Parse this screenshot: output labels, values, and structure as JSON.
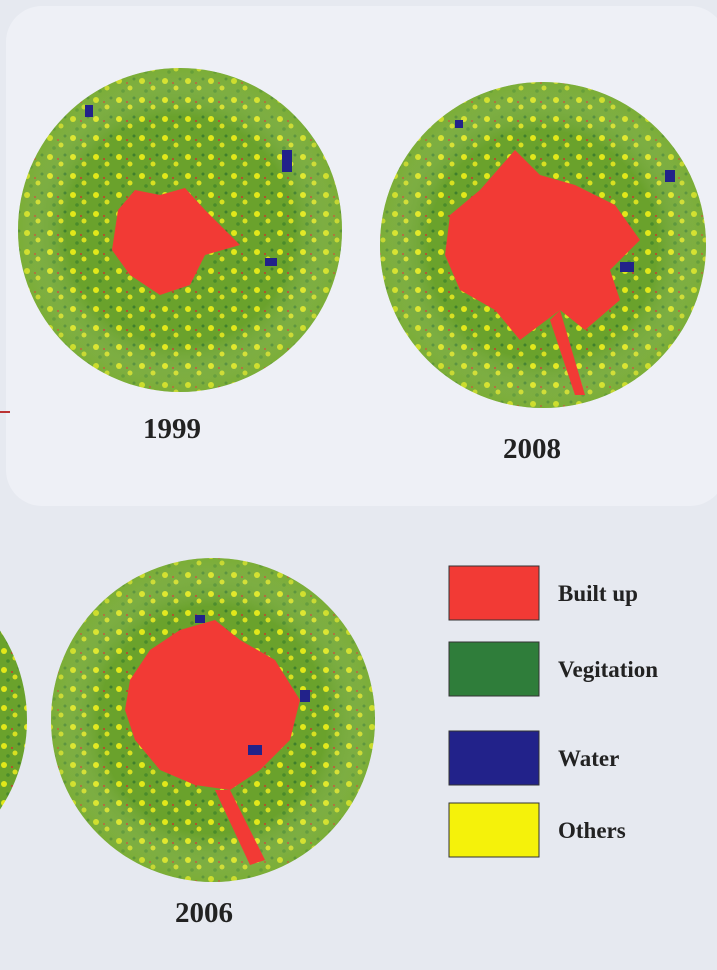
{
  "maps": [
    {
      "label": "1999"
    },
    {
      "label": "2008"
    },
    {
      "label": "2006"
    }
  ],
  "legend": [
    {
      "label": "Built up",
      "color": "#f23a35"
    },
    {
      "label": "Vegitation",
      "color": "#2f7d3a"
    },
    {
      "label": "Water",
      "color": "#22228a"
    },
    {
      "label": "Others",
      "color": "#f5f20a"
    }
  ]
}
